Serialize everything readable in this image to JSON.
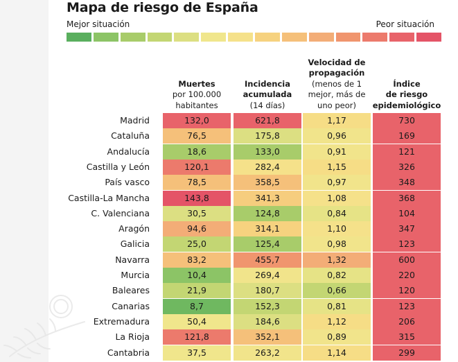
{
  "title": "Mapa de riesgo de España",
  "scale": {
    "best_label": "Mejor situación",
    "worst_label": "Peor situación",
    "colors": [
      "#5aaf5e",
      "#8cc466",
      "#a8cc6a",
      "#c3d673",
      "#dcdf82",
      "#f0e68c",
      "#f5e18a",
      "#f6d27f",
      "#f5c07a",
      "#f3ad77",
      "#f0956e",
      "#ec7a6c",
      "#e8636a",
      "#e45467"
    ]
  },
  "chart_data": {
    "type": "table",
    "title": "Mapa de riesgo de España",
    "columns": [
      {
        "key": "muertes",
        "label_bold": "Muertes",
        "label_normal": [
          "por 100.000",
          "habitantes"
        ]
      },
      {
        "key": "incidencia",
        "label_bold": "Incidencia",
        "label_bold2": "acumulada",
        "label_normal": [
          "(14 días)"
        ]
      },
      {
        "key": "velocidad",
        "label_bold": "Velocidad de",
        "label_bold2": "propagación",
        "label_normal": [
          "(menos de 1",
          "mejor, más de",
          "uno peor)"
        ]
      },
      {
        "key": "indice",
        "label_bold": "Índice",
        "label_bold2": "de riesgo",
        "label_bold3": "epidemiológico",
        "label_normal": []
      }
    ],
    "rows": [
      {
        "region": "Madrid",
        "muertes": "132,0",
        "incidencia": "621,8",
        "velocidad": "1,17",
        "indice": "730",
        "colors": [
          "#e8636a",
          "#e8636a",
          "#f6dd86",
          "#e8636a"
        ]
      },
      {
        "region": "Cataluña",
        "muertes": "76,5",
        "incidencia": "175,8",
        "velocidad": "0,96",
        "indice": "169",
        "colors": [
          "#f5c07a",
          "#dcdf82",
          "#f1e48b",
          "#e8636a"
        ]
      },
      {
        "region": "Andalucía",
        "muertes": "18,6",
        "incidencia": "133,0",
        "velocidad": "0,91",
        "indice": "121",
        "colors": [
          "#a8cc6a",
          "#a8cc6a",
          "#f1e48b",
          "#e8636a"
        ]
      },
      {
        "region": "Castilla y León",
        "muertes": "120,1",
        "incidencia": "282,4",
        "velocidad": "1,15",
        "indice": "326",
        "colors": [
          "#ec7a6c",
          "#f5e18a",
          "#f6dd86",
          "#e8636a"
        ]
      },
      {
        "region": "País vasco",
        "muertes": "78,5",
        "incidencia": "358,5",
        "velocidad": "0,97",
        "indice": "348",
        "colors": [
          "#f5c07a",
          "#f5c07a",
          "#f1e48b",
          "#e8636a"
        ]
      },
      {
        "region": "Castilla-La Mancha",
        "muertes": "143,8",
        "incidencia": "341,3",
        "velocidad": "1,08",
        "indice": "368",
        "colors": [
          "#e45467",
          "#f6cd7e",
          "#f5e18a",
          "#e8636a"
        ]
      },
      {
        "region": "C. Valenciana",
        "muertes": "30,5",
        "incidencia": "124,8",
        "velocidad": "0,84",
        "indice": "104",
        "colors": [
          "#dcdf82",
          "#a8cc6a",
          "#e6e386",
          "#e8636a"
        ]
      },
      {
        "region": "Aragón",
        "muertes": "94,6",
        "incidencia": "314,1",
        "velocidad": "1,10",
        "indice": "347",
        "colors": [
          "#f3ad77",
          "#f6d27f",
          "#f5e18a",
          "#e8636a"
        ]
      },
      {
        "region": "Galicia",
        "muertes": "25,0",
        "incidencia": "125,4",
        "velocidad": "0,98",
        "indice": "123",
        "colors": [
          "#c3d673",
          "#a8cc6a",
          "#f1e48b",
          "#e8636a"
        ]
      },
      {
        "region": "Navarra",
        "muertes": "83,2",
        "incidencia": "455,7",
        "velocidad": "1,32",
        "indice": "600",
        "colors": [
          "#f5c07a",
          "#f0956e",
          "#f3ad77",
          "#e8636a"
        ]
      },
      {
        "region": "Murcia",
        "muertes": "10,4",
        "incidencia": "269,4",
        "velocidad": "0,82",
        "indice": "220",
        "colors": [
          "#8cc466",
          "#f1e48b",
          "#e6e386",
          "#e8636a"
        ]
      },
      {
        "region": "Baleares",
        "muertes": "21,9",
        "incidencia": "180,7",
        "velocidad": "0,66",
        "indice": "120",
        "colors": [
          "#c3d673",
          "#dcdf82",
          "#c3d673",
          "#e8636a"
        ]
      },
      {
        "region": "Canarias",
        "muertes": "8,7",
        "incidencia": "152,3",
        "velocidad": "0,81",
        "indice": "123",
        "colors": [
          "#6fb860",
          "#c3d673",
          "#e6e386",
          "#e8636a"
        ]
      },
      {
        "region": "Extremadura",
        "muertes": "50,4",
        "incidencia": "184,6",
        "velocidad": "1,12",
        "indice": "206",
        "colors": [
          "#f0e68c",
          "#dcdf82",
          "#f6dd86",
          "#e8636a"
        ]
      },
      {
        "region": "La Rioja",
        "muertes": "121,8",
        "incidencia": "352,1",
        "velocidad": "0,89",
        "indice": "315",
        "colors": [
          "#ec7a6c",
          "#f5c07a",
          "#f1e48b",
          "#e8636a"
        ]
      },
      {
        "region": "Cantabria",
        "muertes": "37,5",
        "incidencia": "263,2",
        "velocidad": "1,14",
        "indice": "299",
        "colors": [
          "#f0e68c",
          "#f1e48b",
          "#f6dd86",
          "#e8636a"
        ]
      }
    ]
  }
}
